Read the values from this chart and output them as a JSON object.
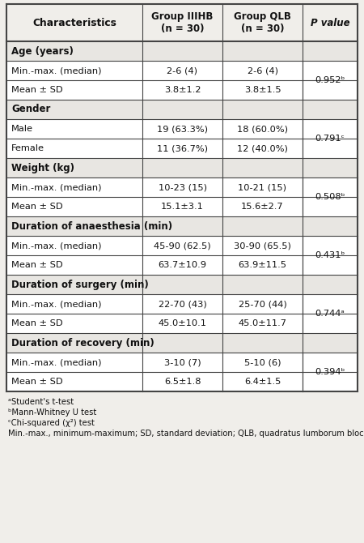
{
  "title_row": [
    "Characteristics",
    "Group IIIHB\n(n = 30)",
    "Group QLB\n(n = 30)",
    "P value"
  ],
  "sections": [
    {
      "header": "Age (years)",
      "rows": [
        [
          "Min.-max. (median)",
          "2-6 (4)",
          "2-6 (4)"
        ],
        [
          "Mean ± SD",
          "3.8±1.2",
          "3.8±1.5"
        ]
      ],
      "p_value": "0.952ᵇ"
    },
    {
      "header": "Gender",
      "rows": [
        [
          "Male",
          "19 (63.3%)",
          "18 (60.0%)"
        ],
        [
          "Female",
          "11 (36.7%)",
          "12 (40.0%)"
        ]
      ],
      "p_value": "0.791ᶜ"
    },
    {
      "header": "Weight (kg)",
      "rows": [
        [
          "Min.-max. (median)",
          "10-23 (15)",
          "10-21 (15)"
        ],
        [
          "Mean ± SD",
          "15.1±3.1",
          "15.6±2.7"
        ]
      ],
      "p_value": "0.508ᵇ"
    },
    {
      "header": "Duration of anaesthesia (min)",
      "rows": [
        [
          "Min.-max. (median)",
          "45-90 (62.5)",
          "30-90 (65.5)"
        ],
        [
          "Mean ± SD",
          "63.7±10.9",
          "63.9±11.5"
        ]
      ],
      "p_value": "0.431ᵇ"
    },
    {
      "header": "Duration of surgery (min)",
      "rows": [
        [
          "Min.-max. (median)",
          "22-70 (43)",
          "25-70 (44)"
        ],
        [
          "Mean ± SD",
          "45.0±10.1",
          "45.0±11.7"
        ]
      ],
      "p_value": "0.744ᵃ"
    },
    {
      "header": "Duration of recovery (min)",
      "rows": [
        [
          "Min.-max. (median)",
          "3-10 (7)",
          "5-10 (6)"
        ],
        [
          "Mean ± SD",
          "6.5±1.8",
          "6.4±1.5"
        ]
      ],
      "p_value": "0.394ᵇ"
    }
  ],
  "footnotes": [
    "ᵃStudent's t-test",
    "ᵇMann-Whitney U test",
    "ᶜChi-squared (χ²) test",
    "Min.-max., minimum-maximum; SD, standard deviation; QLB, quadratus lumborum block; IIIHB, ilioinguinal-iliohypogastric nerve block."
  ],
  "bg_color": "#f0eeea",
  "section_bg": "#e8e6e2",
  "line_color": "#444444",
  "text_color": "#111111"
}
